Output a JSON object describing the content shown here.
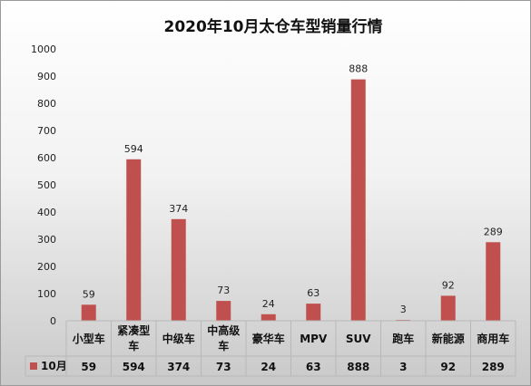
{
  "chart_data": {
    "type": "bar",
    "title": "2020年10月太仓车型销量行情",
    "categories": [
      [
        "小型车"
      ],
      [
        "紧凑型",
        "车"
      ],
      [
        "中级车"
      ],
      [
        "中高级",
        "车"
      ],
      [
        "豪华车"
      ],
      [
        "MPV"
      ],
      [
        "SUV"
      ],
      [
        "跑车"
      ],
      [
        "新能源"
      ],
      [
        "商用车"
      ]
    ],
    "series": [
      {
        "name": "10月",
        "values": [
          59,
          594,
          374,
          73,
          24,
          63,
          888,
          3,
          92,
          289
        ],
        "color": "#c0504d"
      }
    ],
    "value_labels": [
      "59",
      "594",
      "374",
      "73",
      "24",
      "63",
      "888",
      "3",
      "92",
      "289"
    ],
    "ylim": [
      0,
      1000
    ],
    "yticks": [
      "0",
      "100",
      "200",
      "300",
      "400",
      "500",
      "600",
      "700",
      "800",
      "900",
      "1000"
    ],
    "grid": false,
    "legend_placement": "data-table",
    "data_table": true
  }
}
